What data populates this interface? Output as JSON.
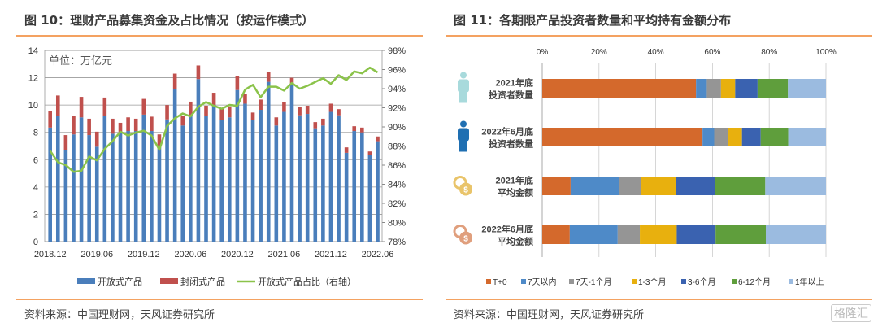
{
  "left": {
    "title": "图 10：理财产品募集资金及占比情况（按运作模式）",
    "source": "资料来源：中国理财网，天风证券研究所"
  },
  "right": {
    "title": "图 11：各期限产品投资者数量和平均持有金额分布",
    "source": "资料来源：中国理财网，天风证券研究所"
  },
  "watermark": "格隆汇",
  "chart_data": [
    {
      "type": "bar",
      "stacked": true,
      "unit_label": "单位：万亿元",
      "x_tick_labels": [
        "2018.12",
        "2019.06",
        "2019.12",
        "2020.06",
        "2020.12",
        "2021.06",
        "2021.12",
        "2022.06"
      ],
      "ylim": [
        0,
        14
      ],
      "y_ticks": [
        0,
        2,
        4,
        6,
        8,
        10,
        12,
        14
      ],
      "y2lim": [
        78,
        98
      ],
      "y2_ticks": [
        "78%",
        "80%",
        "82%",
        "84%",
        "86%",
        "88%",
        "90%",
        "92%",
        "94%",
        "96%",
        "98%"
      ],
      "grid": true,
      "legend_position": "bottom",
      "series": [
        {
          "name": "开放式产品",
          "type": "bar",
          "color": "#4a7ebb",
          "values": [
            8.35,
            9.2,
            6.7,
            7.85,
            9.1,
            7.8,
            6.95,
            9.2,
            7.9,
            8.0,
            8.1,
            8.1,
            9.3,
            8.1,
            6.95,
            8.95,
            11.2,
            8.5,
            9.2,
            11.9,
            9.2,
            10.0,
            8.9,
            9.1,
            11.1,
            10.1,
            8.9,
            9.65,
            11.7,
            8.5,
            9.5,
            11.6,
            9.25,
            9.35,
            8.3,
            8.5,
            9.5,
            9.25,
            6.5,
            8.1,
            8.0,
            6.35,
            7.35
          ]
        },
        {
          "name": "封闭式产品",
          "type": "bar",
          "color": "#c0504d",
          "values": [
            1.2,
            1.5,
            1.1,
            1.35,
            1.5,
            1.2,
            1.1,
            1.35,
            1.1,
            0.7,
            1.0,
            0.9,
            1.15,
            1.05,
            0.9,
            1.05,
            1.1,
            0.7,
            1.05,
            1.0,
            0.75,
            0.9,
            0.9,
            0.8,
            1.0,
            0.7,
            0.55,
            0.75,
            0.75,
            0.6,
            0.7,
            0.4,
            0.6,
            0.6,
            0.45,
            0.5,
            0.6,
            0.45,
            0.4,
            0.35,
            0.35,
            0.25,
            0.35
          ]
        },
        {
          "name": "开放式产品占比（右轴）",
          "type": "line",
          "axis": "right",
          "color": "#8bc34a",
          "values": [
            87.5,
            86.3,
            86.0,
            85.3,
            85.4,
            86.9,
            86.5,
            87.7,
            88.5,
            89.5,
            89.1,
            89.4,
            89.6,
            89.1,
            87.6,
            90.1,
            90.9,
            91.4,
            91.1,
            92.1,
            92.6,
            92.2,
            91.9,
            92.3,
            92.2,
            93.9,
            94.4,
            93.1,
            94.2,
            94.2,
            93.8,
            94.6,
            94.0,
            94.3,
            94.7,
            95.1,
            94.5,
            95.4,
            94.9,
            95.8,
            95.6,
            96.2,
            95.7
          ]
        }
      ]
    },
    {
      "type": "bar",
      "orientation": "horizontal",
      "stacked_percent": true,
      "x_ticks": [
        "0%",
        "20%",
        "40%",
        "60%",
        "80%",
        "100%"
      ],
      "xlim": [
        0,
        100
      ],
      "grid": true,
      "legend_position": "bottom",
      "categories": [
        {
          "line1": "2021年底",
          "line2": "投资者数量",
          "icon": "person-icon",
          "icon_color": "#a8dadc"
        },
        {
          "line1": "2022年6月底",
          "line2": "投资者数量",
          "icon": "person-icon",
          "icon_color": "#1f6fb2"
        },
        {
          "line1": "2021年底",
          "line2": "平均金额",
          "icon": "coins-icon",
          "icon_color": "#e9c46a"
        },
        {
          "line1": "2022年6月底",
          "line2": "平均金额",
          "icon": "coins-icon",
          "icon_color": "#e09f7d"
        }
      ],
      "series": [
        {
          "name": "T+0",
          "color": "#d4692c",
          "values": [
            54.2,
            56.5,
            10.0,
            9.7
          ]
        },
        {
          "name": "7天以内",
          "color": "#4e8ac8",
          "values": [
            3.8,
            4.1,
            17.1,
            16.9
          ]
        },
        {
          "name": "7天-1个月",
          "color": "#959595",
          "values": [
            5.0,
            4.8,
            7.6,
            7.8
          ]
        },
        {
          "name": "1-3个月",
          "color": "#e8b00e",
          "values": [
            5.0,
            5.0,
            12.5,
            13.0
          ]
        },
        {
          "name": "3-6个月",
          "color": "#3a62b0",
          "values": [
            7.9,
            6.6,
            13.6,
            13.7
          ]
        },
        {
          "name": "6-12个月",
          "color": "#5f9e3c",
          "values": [
            10.7,
            9.7,
            17.8,
            17.7
          ]
        },
        {
          "name": "1年以上",
          "color": "#9bbbe0",
          "values": [
            13.4,
            13.3,
            21.4,
            21.2
          ]
        }
      ]
    }
  ]
}
